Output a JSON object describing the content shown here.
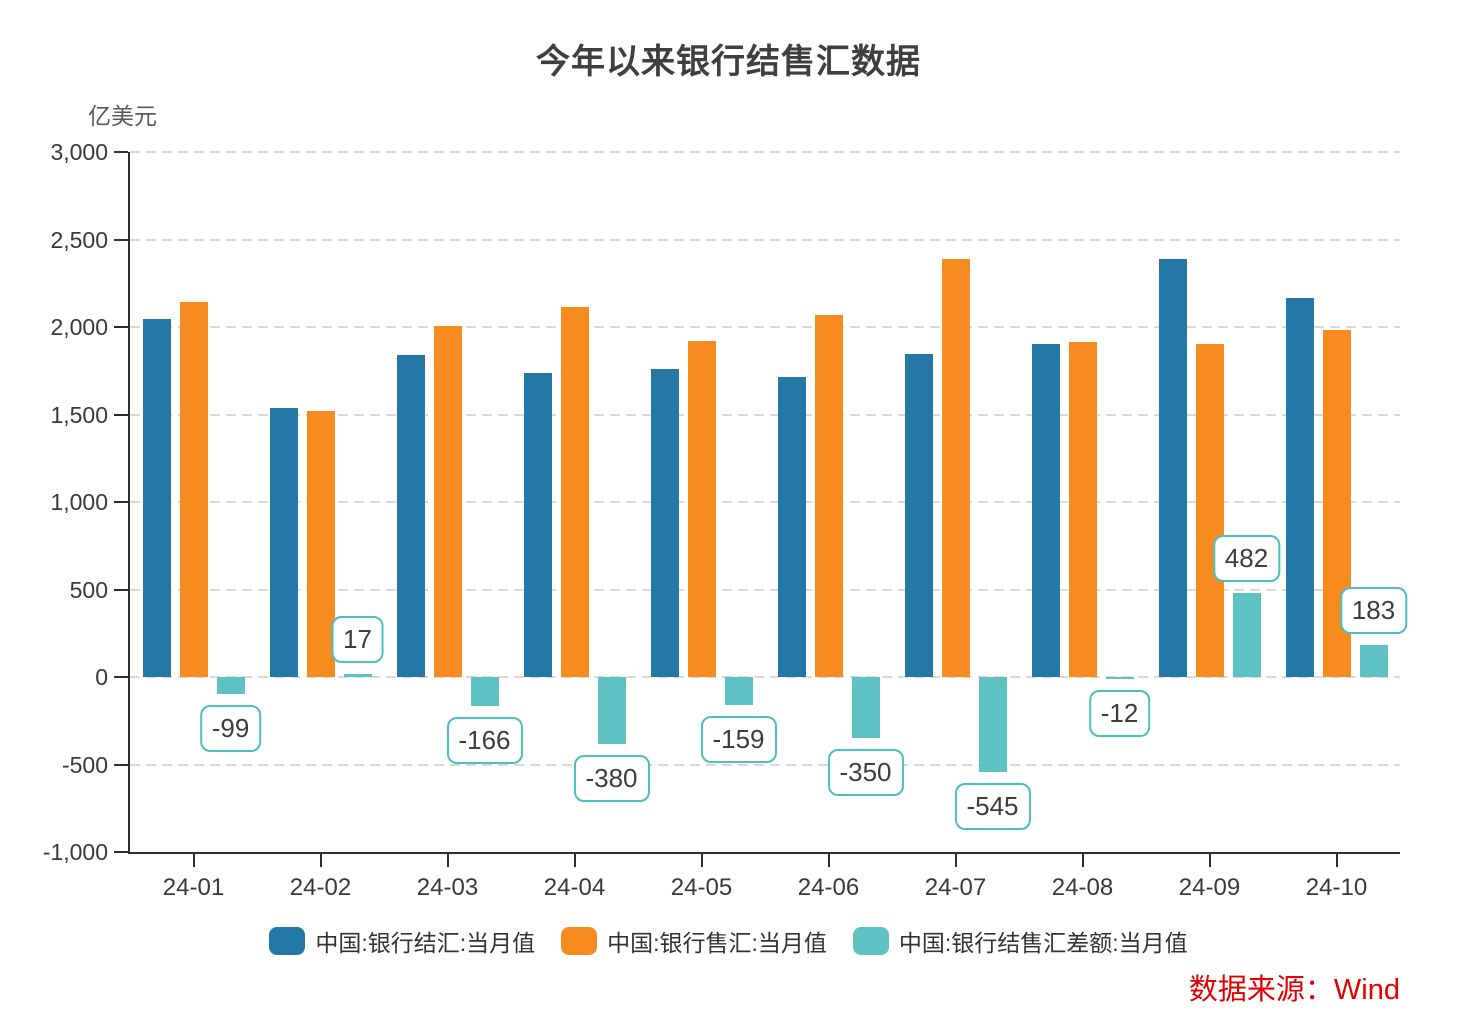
{
  "title": "今年以来银行结售汇数据",
  "y_axis_unit": "亿美元",
  "source_note": "数据来源：Wind",
  "colors": {
    "settlement_blue": "#2478a6",
    "sales_orange": "#f68b1f",
    "balance_teal": "#5ec1c3",
    "label_box_border": "#4cbfc1",
    "axis": "#2f2f2f",
    "gridline": "#d9d9d9",
    "source_red": "#e50000"
  },
  "chart_data": {
    "type": "bar",
    "title": "今年以来银行结售汇数据",
    "ylabel": "亿美元",
    "xlabel": "",
    "ylim": [
      -1000,
      3000
    ],
    "grid": "dashed horizontal gridlines every 500",
    "legend_position": "bottom",
    "categories": [
      "24-01",
      "24-02",
      "24-03",
      "24-04",
      "24-05",
      "24-06",
      "24-07",
      "24-08",
      "24-09",
      "24-10"
    ],
    "y_ticks": [
      {
        "label": "3,000",
        "value": 3000
      },
      {
        "label": "2,500",
        "value": 2500
      },
      {
        "label": "2,000",
        "value": 2000
      },
      {
        "label": "1,500",
        "value": 1500
      },
      {
        "label": "1,000",
        "value": 1000
      },
      {
        "label": "500",
        "value": 500
      },
      {
        "label": "0",
        "value": 0
      },
      {
        "label": "-500",
        "value": -500
      },
      {
        "label": "-1,000",
        "value": -1000
      }
    ],
    "series": [
      {
        "name": "中国:银行结汇:当月值",
        "color": "#2478a6",
        "values": [
          2044,
          1539,
          1840,
          1735,
          1760,
          1716,
          1845,
          1902,
          2386,
          2167
        ],
        "show_data_labels": false
      },
      {
        "name": "中国:银行售汇:当月值",
        "color": "#f68b1f",
        "values": [
          2143,
          1522,
          2006,
          2115,
          1919,
          2066,
          2390,
          1914,
          1904,
          1984
        ],
        "show_data_labels": false
      },
      {
        "name": "中国:银行结售汇差额:当月值",
        "color": "#5ec1c3",
        "values": [
          -99,
          17,
          -166,
          -380,
          -159,
          -350,
          -545,
          -12,
          482,
          183
        ],
        "show_data_labels": true,
        "data_labels": [
          "-99",
          "17",
          "-166",
          "-380",
          "-159",
          "-350",
          "-545",
          "-12",
          "482",
          "183"
        ]
      }
    ]
  }
}
